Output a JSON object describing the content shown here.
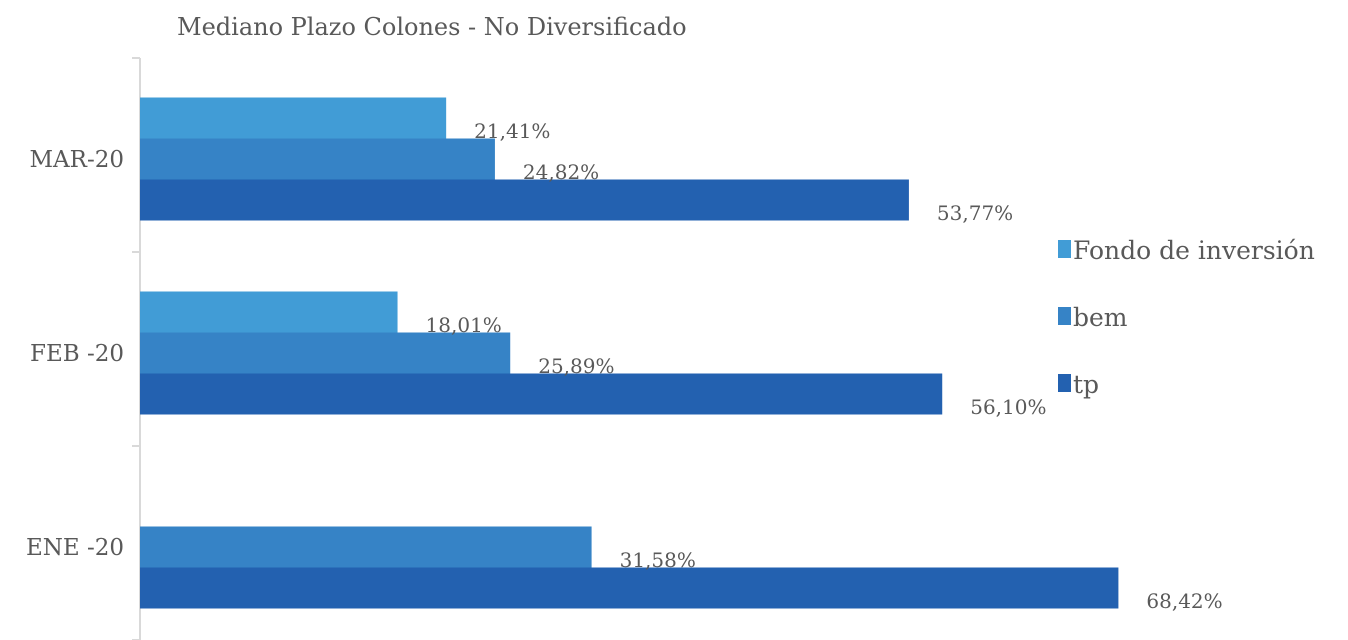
{
  "chart_data": {
    "type": "bar",
    "orientation": "horizontal",
    "title": "Mediano Plazo Colones - No Diversificado",
    "categories": [
      "MAR-20",
      "FEB -20",
      "ENE -20"
    ],
    "series": [
      {
        "name": "Fondo de inversión",
        "color": "#419cd6",
        "values": [
          21.41,
          18.01,
          null
        ],
        "labels": [
          "21,41%",
          "18,01%",
          ""
        ]
      },
      {
        "name": "bem",
        "color": "#3683c6",
        "values": [
          24.82,
          25.89,
          31.58
        ],
        "labels": [
          "24,82%",
          "25,89%",
          "31,58%"
        ]
      },
      {
        "name": "tp",
        "color": "#2361b0",
        "values": [
          53.77,
          56.1,
          68.42
        ],
        "labels": [
          "53,77%",
          "56,10%",
          "68,42%"
        ]
      }
    ],
    "xlim": [
      0,
      100
    ],
    "grid": false,
    "legend_position": "right"
  }
}
